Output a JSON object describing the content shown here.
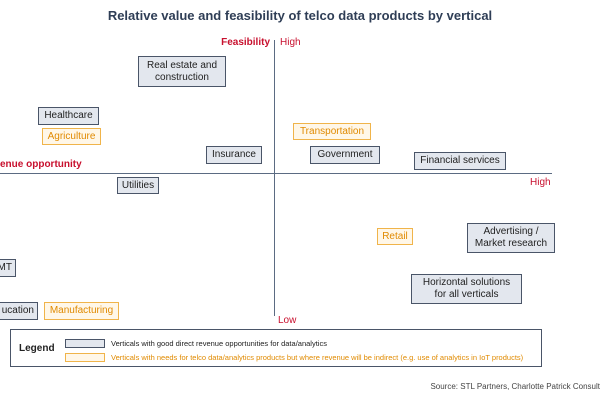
{
  "title": "Relative value and feasibility of telco data products by vertical",
  "axes": {
    "y_label": "Feasibility",
    "y_high": "High",
    "y_low": "Low",
    "x_label": "enue opportunity",
    "x_high": "High"
  },
  "verticals": {
    "real_estate_line1": "Real estate and",
    "real_estate_line2": "construction",
    "healthcare": "Healthcare",
    "agriculture": "Agriculture",
    "transportation": "Transportation",
    "insurance": "Insurance",
    "government": "Government",
    "financial_services": "Financial services",
    "utilities": "Utilities",
    "retail": "Retail",
    "advertising_line1": "Advertising /",
    "advertising_line2": "Market research",
    "tmt": "MT",
    "horizontal_line1": "Horizontal solutions",
    "horizontal_line2": "for all verticals",
    "education": "ucation",
    "manufacturing": "Manufacturing"
  },
  "legend": {
    "title": "Legend",
    "direct": "Verticals with good direct revenue opportunities for data/analytics",
    "indirect": "Verticals with needs for telco data/analytics products but where revenue will be indirect (e.g. use of analytics in IoT products)"
  },
  "source": "Source: STL Partners, Charlotte Patrick Consult",
  "colors": {
    "axis_label": "#c8102e",
    "direct_fill": "#e3e7ee",
    "indirect_text": "#e08a00",
    "indirect_border": "#f0b44a"
  }
}
